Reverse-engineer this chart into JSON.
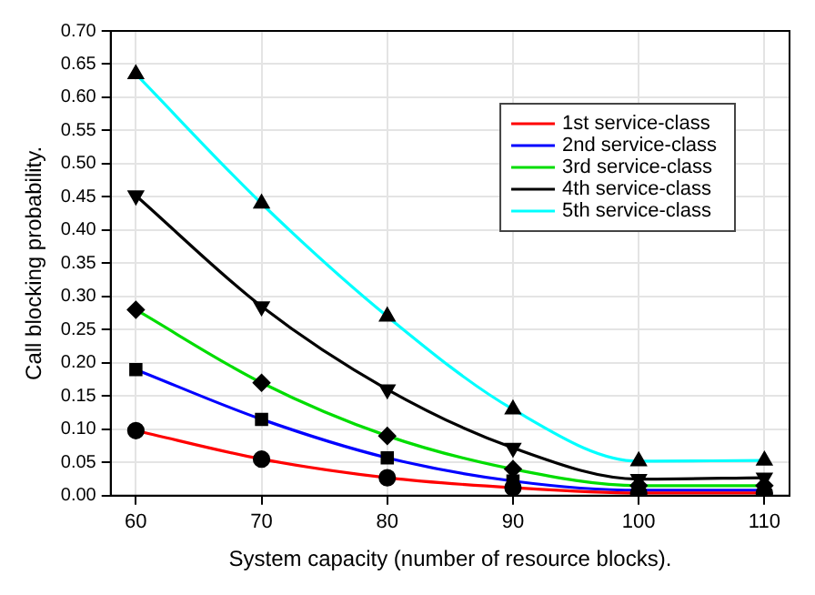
{
  "chart_data": {
    "type": "line",
    "xlabel": "System capacity (number of resource blocks).",
    "ylabel": "Call blocking probability.",
    "x": [
      60,
      70,
      80,
      90,
      100,
      110
    ],
    "xlim": [
      58,
      112
    ],
    "xticks": [
      60,
      70,
      80,
      90,
      100,
      110
    ],
    "ylim": [
      0,
      0.7
    ],
    "yticks": [
      {
        "value": 0,
        "label": "0.00"
      },
      {
        "value": 0.05,
        "label": "0.05"
      },
      {
        "value": 0.1,
        "label": "0.10"
      },
      {
        "value": 0.15,
        "label": "0.15"
      },
      {
        "value": 0.2,
        "label": "0.20"
      },
      {
        "value": 0.25,
        "label": "0.25"
      },
      {
        "value": 0.3,
        "label": "0.30"
      },
      {
        "value": 0.35,
        "label": "0.35"
      },
      {
        "value": 0.4,
        "label": "0.40"
      },
      {
        "value": 0.45,
        "label": "0.45"
      },
      {
        "value": 0.5,
        "label": "0.50"
      },
      {
        "value": 0.55,
        "label": "0.55"
      },
      {
        "value": 0.6,
        "label": "0.60"
      },
      {
        "value": 0.65,
        "label": "0.65"
      },
      {
        "value": 0.7,
        "label": "0.70"
      }
    ],
    "grid": true,
    "legend": "top right",
    "line_style": "solid",
    "series": [
      {
        "name": "1st service-class",
        "color": "#ff0000",
        "marker": "circle",
        "values": [
          0.098,
          0.055,
          0.027,
          0.012,
          0.004,
          0.004
        ]
      },
      {
        "name": "2nd service-class",
        "color": "#0000ff",
        "marker": "square",
        "values": [
          0.19,
          0.115,
          0.057,
          0.022,
          0.008,
          0.008
        ]
      },
      {
        "name": "3rd service-class",
        "color": "#00dd00",
        "marker": "diamond",
        "values": [
          0.28,
          0.17,
          0.09,
          0.04,
          0.015,
          0.015
        ]
      },
      {
        "name": "4th service-class",
        "color": "#000000",
        "marker": "triangle-down",
        "values": [
          0.452,
          0.285,
          0.16,
          0.072,
          0.025,
          0.027
        ]
      },
      {
        "name": "5th service-class",
        "color": "#00ffff",
        "marker": "triangle",
        "values": [
          0.635,
          0.44,
          0.27,
          0.13,
          0.052,
          0.053
        ]
      }
    ]
  }
}
